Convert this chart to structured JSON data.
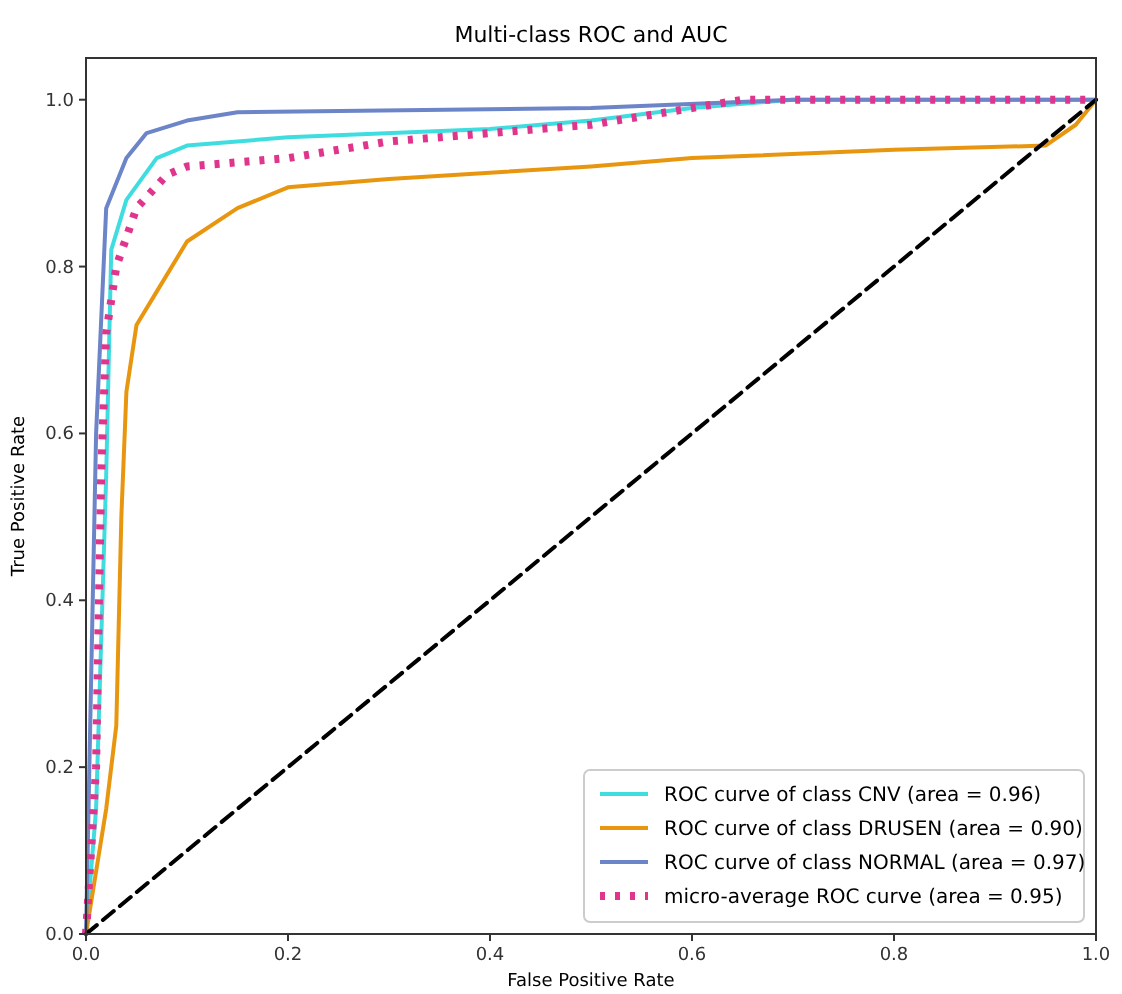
{
  "chart_data": {
    "type": "line",
    "title": "Multi-class ROC and AUC",
    "xlabel": "False Positive Rate",
    "ylabel": "True Positive Rate",
    "xlim": [
      0,
      1
    ],
    "ylim": [
      0,
      1.05
    ],
    "xticks": [
      {
        "value": 0,
        "label": "0.0"
      },
      0.2,
      0.4,
      0.6,
      0.8,
      {
        "value": 1,
        "label": "1.0"
      }
    ],
    "yticks": [
      {
        "value": 0,
        "label": "0.0"
      },
      0.2,
      0.4,
      0.6,
      0.8,
      {
        "value": 1,
        "label": "1.0"
      }
    ],
    "grid": false,
    "legend": "bottom right",
    "series": [
      {
        "name": "ROC curve of class CNV (area = 0.96)",
        "color": "#40dde0",
        "line_style": "solid",
        "x": [
          0,
          0.01,
          0.02,
          0.025,
          0.04,
          0.07,
          0.1,
          0.2,
          0.4,
          0.5,
          0.6,
          0.7,
          1
        ],
        "values": [
          0,
          0.15,
          0.55,
          0.82,
          0.88,
          0.93,
          0.945,
          0.955,
          0.965,
          0.975,
          0.99,
          1,
          1
        ]
      },
      {
        "name": "ROC curve of class DRUSEN (area = 0.90)",
        "color": "#e8960f",
        "line_style": "solid",
        "x": [
          0,
          0.02,
          0.03,
          0.035,
          0.04,
          0.05,
          0.07,
          0.1,
          0.15,
          0.2,
          0.3,
          0.5,
          0.6,
          0.8,
          0.95,
          0.98,
          1
        ],
        "values": [
          0,
          0.15,
          0.25,
          0.5,
          0.65,
          0.73,
          0.77,
          0.83,
          0.87,
          0.895,
          0.905,
          0.92,
          0.93,
          0.94,
          0.945,
          0.97,
          1
        ]
      },
      {
        "name": "ROC curve of class NORMAL (area = 0.97)",
        "color": "#6c84c8",
        "line_style": "solid",
        "x": [
          0,
          0.01,
          0.02,
          0.04,
          0.06,
          0.1,
          0.15,
          0.5,
          0.7,
          1
        ],
        "values": [
          0,
          0.6,
          0.87,
          0.93,
          0.96,
          0.975,
          0.985,
          0.99,
          1,
          1
        ]
      },
      {
        "name": "micro-average ROC curve (area = 0.95)",
        "color": "#e0358c",
        "line_style": "dotted",
        "x": [
          0,
          0.01,
          0.015,
          0.02,
          0.03,
          0.05,
          0.08,
          0.1,
          0.2,
          0.3,
          0.5,
          0.6,
          0.65,
          1
        ],
        "values": [
          0,
          0.2,
          0.55,
          0.72,
          0.8,
          0.87,
          0.91,
          0.92,
          0.93,
          0.95,
          0.97,
          0.99,
          1,
          1
        ]
      },
      {
        "color": "#000000",
        "line_style": "dashed",
        "x": [
          0,
          1
        ],
        "values": [
          0,
          1
        ]
      }
    ]
  }
}
